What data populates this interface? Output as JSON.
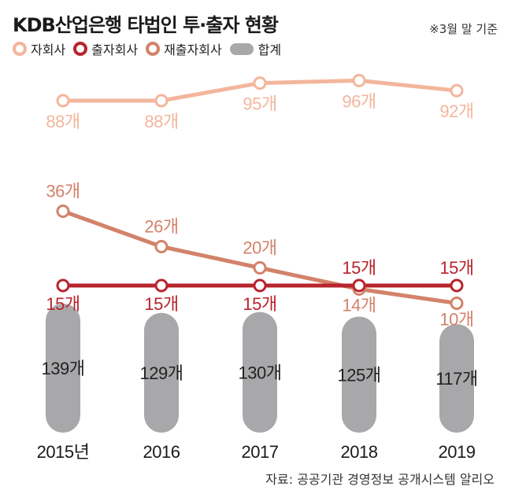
{
  "title": "KDB산업은행 타법인 투·출자 현황",
  "note": "※3월 말 기준",
  "source": "자료: 공공기관 경영정보 공개시스템 알리오",
  "colors": {
    "subsidiary": "#f3b69c",
    "investee": "#b8242d",
    "reinvestee": "#d3826a",
    "total": "#a8a8ab"
  },
  "chart_data": {
    "type": "line",
    "categories": [
      "2015년",
      "2016",
      "2017",
      "2018",
      "2019"
    ],
    "unit": "개",
    "series": [
      {
        "name": "자회사",
        "values": [
          88,
          88,
          95,
          96,
          92
        ]
      },
      {
        "name": "출자회사",
        "values": [
          15,
          15,
          15,
          15,
          15
        ]
      },
      {
        "name": "재출자회사",
        "values": [
          36,
          26,
          20,
          14,
          10
        ]
      },
      {
        "name": "합계",
        "values": [
          139,
          129,
          130,
          125,
          117
        ]
      }
    ]
  }
}
